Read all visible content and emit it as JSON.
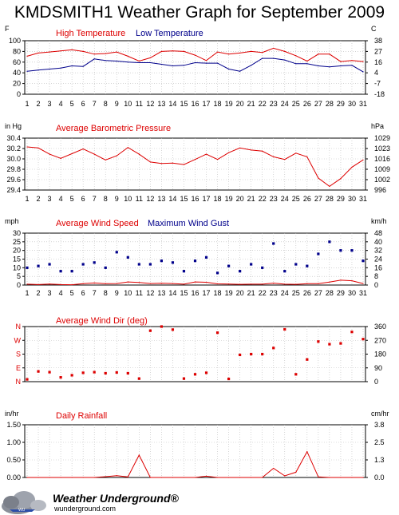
{
  "page": {
    "title": "KMDSMITH1 Weather Graph for September 2009"
  },
  "branding": {
    "name": "Weather Underground",
    "trademark": "®",
    "url": "wunderground.com"
  },
  "days": [
    1,
    2,
    3,
    4,
    5,
    6,
    7,
    8,
    9,
    10,
    11,
    12,
    13,
    14,
    15,
    16,
    17,
    18,
    19,
    20,
    21,
    22,
    23,
    24,
    25,
    26,
    27,
    28,
    29,
    30,
    31
  ],
  "chart_data": [
    {
      "type": "line",
      "y_left_unit": "F",
      "y_right_unit": "C",
      "ylim": [
        0,
        100
      ],
      "y_ticks_left": [
        0,
        20,
        40,
        60,
        80,
        100
      ],
      "y_ticks_right": [
        "-18",
        "-7",
        "4",
        "16",
        "27",
        "38"
      ],
      "grid": true,
      "series": [
        {
          "name": "High Temperature",
          "color": "#dd0000",
          "values": [
            71,
            77,
            79,
            81,
            83,
            80,
            75,
            76,
            79,
            71,
            62,
            68,
            80,
            81,
            80,
            73,
            63,
            79,
            75,
            77,
            80,
            78,
            86,
            80,
            72,
            62,
            75,
            75,
            61,
            63,
            61
          ]
        },
        {
          "name": "Low Temperature",
          "color": "#00008b",
          "values": [
            43,
            45,
            47,
            49,
            53,
            52,
            66,
            63,
            62,
            60,
            59,
            59,
            56,
            53,
            54,
            59,
            58,
            58,
            47,
            43,
            54,
            67,
            67,
            64,
            57,
            57,
            53,
            51,
            53,
            54,
            42
          ]
        }
      ]
    },
    {
      "type": "line",
      "y_left_unit": "in Hg",
      "y_right_unit": "hPa",
      "ylim": [
        29.4,
        30.4
      ],
      "y_ticks_left": [
        "29.4",
        "29.6",
        "29.8",
        "30.0",
        "30.2",
        "30.4"
      ],
      "y_ticks_right": [
        "996",
        "1002",
        "1009",
        "1016",
        "1023",
        "1029"
      ],
      "grid": true,
      "series": [
        {
          "name": "Average Barometric Pressure",
          "color": "#dd0000",
          "values": [
            30.23,
            30.21,
            30.09,
            30.01,
            30.1,
            30.19,
            30.09,
            29.98,
            30.06,
            30.22,
            30.09,
            29.94,
            29.91,
            29.92,
            29.89,
            29.99,
            30.09,
            29.99,
            30.12,
            30.21,
            30.17,
            30.15,
            30.04,
            29.99,
            30.11,
            30.04,
            29.63,
            29.47,
            29.62,
            29.84,
            29.98
          ]
        }
      ]
    },
    {
      "type": "line",
      "y_left_unit": "mph",
      "y_right_unit": "km/h",
      "ylim": [
        0,
        30
      ],
      "y_ticks_left": [
        0,
        5,
        10,
        15,
        20,
        25,
        30
      ],
      "y_ticks_right": [
        "0",
        "8",
        "16",
        "24",
        "32",
        "40",
        "48"
      ],
      "grid": true,
      "series": [
        {
          "name": "Average Wind Speed",
          "color": "#dd0000",
          "style": "line",
          "values": [
            0.5,
            0.3,
            0.6,
            0.3,
            0.2,
            0.8,
            1.2,
            0.8,
            0.9,
            1.8,
            1.5,
            0.9,
            1.0,
            0.9,
            0.5,
            1.8,
            1.6,
            0.7,
            0.6,
            0.4,
            0.5,
            0.5,
            1.1,
            0.5,
            0.4,
            0.8,
            0.8,
            1.7,
            2.8,
            2.5,
            0.9
          ]
        },
        {
          "name": "Maximum Wind Gust",
          "color": "#00008b",
          "style": "points",
          "values": [
            10,
            11,
            12,
            8,
            8,
            12,
            13,
            10,
            19,
            16,
            12,
            12,
            14,
            13,
            8,
            14,
            16,
            7,
            11,
            8,
            12,
            10,
            24,
            8,
            12,
            11,
            18,
            25,
            20,
            20,
            14
          ]
        }
      ]
    },
    {
      "type": "scatter",
      "y_left_unit": "",
      "y_right_unit": "",
      "ylim": [
        0,
        360
      ],
      "y_ticks_left": [
        "N",
        "E",
        "S",
        "W",
        "N"
      ],
      "y_ticks_right": [
        "0",
        "90",
        "180",
        "270",
        "360"
      ],
      "grid": true,
      "series": [
        {
          "name": "Average Wind Dir (deg)",
          "color": "#dd0000",
          "values": [
            15,
            67,
            62,
            28,
            42,
            58,
            62,
            55,
            60,
            55,
            20,
            333,
            360,
            340,
            20,
            48,
            58,
            320,
            18,
            175,
            180,
            180,
            220,
            342,
            48,
            145,
            262,
            245,
            250,
            325,
            278
          ]
        }
      ]
    },
    {
      "type": "area",
      "y_left_unit": "in/hr",
      "y_right_unit": "cm/hr",
      "ylim": [
        0,
        2
      ],
      "y_ticks_left": [
        "0.00",
        "0.50",
        "1.00",
        "1.50"
      ],
      "y_ticks_right": [
        "0.0",
        "1.3",
        "2.5",
        "3.8"
      ],
      "grid": true,
      "series": [
        {
          "name": "Daily Rainfall",
          "color": "#dd0000",
          "values": [
            0,
            0,
            0,
            0,
            0,
            0,
            0,
            0.03,
            0.07,
            0.02,
            0.85,
            0,
            0,
            0,
            0,
            0,
            0.05,
            0,
            0,
            0,
            0,
            0,
            0.35,
            0.06,
            0.2,
            0.98,
            0.02,
            0,
            0,
            0,
            0
          ]
        }
      ]
    }
  ]
}
